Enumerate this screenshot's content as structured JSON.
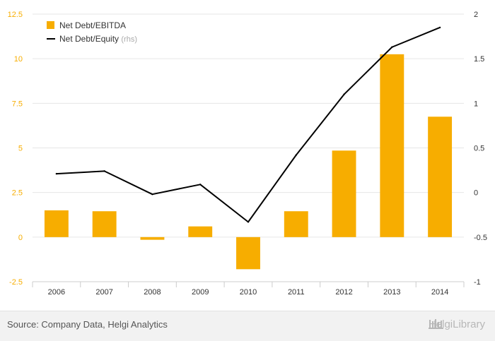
{
  "chart_data": {
    "type": "bar",
    "categories": [
      "2006",
      "2007",
      "2008",
      "2009",
      "2010",
      "2011",
      "2012",
      "2013",
      "2014"
    ],
    "series": [
      {
        "name": "Net Debt/EBITDA",
        "type": "bar",
        "axis": "left",
        "color": "#f7ad00",
        "values": [
          1.5,
          1.45,
          -0.15,
          0.6,
          -1.8,
          1.45,
          4.85,
          10.25,
          6.75
        ]
      },
      {
        "name": "Net Debt/Equity",
        "name_suffix": "(rhs)",
        "type": "line",
        "axis": "right",
        "color": "#000000",
        "values": [
          0.21,
          0.24,
          -0.02,
          0.09,
          -0.33,
          0.42,
          1.1,
          1.63,
          1.85
        ]
      }
    ],
    "y_left": {
      "min": -2.5,
      "max": 12.5,
      "ticks": [
        "-2.5",
        "0",
        "2.5",
        "5",
        "7.5",
        "10",
        "12.5"
      ],
      "tick_color": "#f7ad00"
    },
    "y_right": {
      "min": -1,
      "max": 2,
      "ticks": [
        "-1",
        "-0.5",
        "0",
        "0.5",
        "1",
        "1.5",
        "2"
      ]
    },
    "grid": true,
    "legend_position": "top-left"
  },
  "footer": {
    "source": "Source: Company Data, Helgi Analytics",
    "brand": "HelgiLibrary"
  }
}
